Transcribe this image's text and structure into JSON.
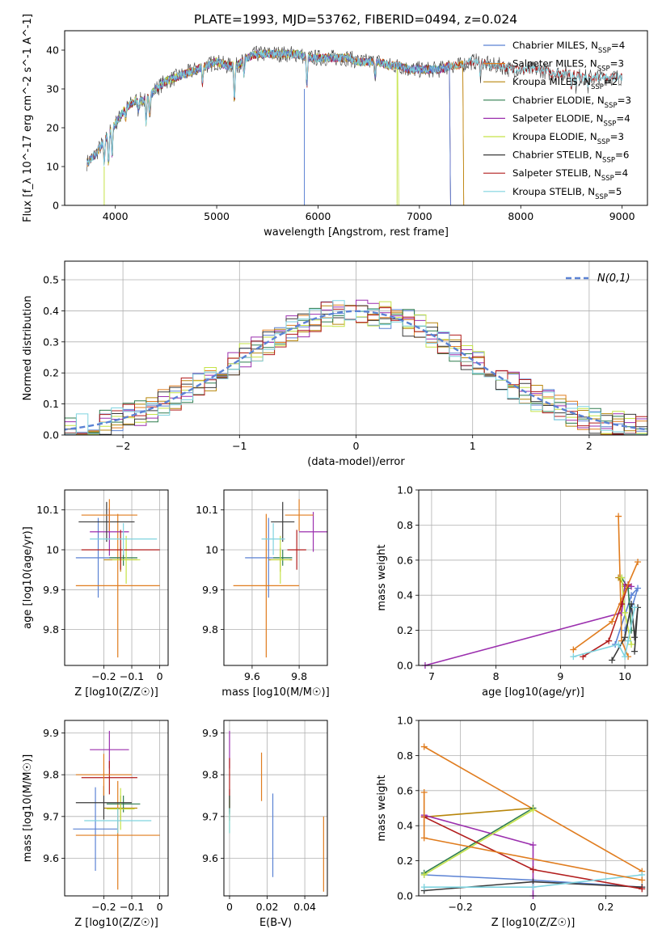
{
  "page": {
    "title": "PLATE=1993, MJD=53762, FIBERID=0494, z=0.024"
  },
  "models": [
    {
      "name": "Chabrier MILES",
      "nssp": "4",
      "color": "#5b82d4"
    },
    {
      "name": "Salpeter MILES",
      "nssp": "3",
      "color": "#e07c1e"
    },
    {
      "name": "Kroupa MILES",
      "nssp": "2",
      "color": "#b8860b"
    },
    {
      "name": "Chabrier ELODIE",
      "nssp": "3",
      "color": "#2f7d4f"
    },
    {
      "name": "Salpeter ELODIE",
      "nssp": "4",
      "color": "#9b2fae"
    },
    {
      "name": "Kroupa ELODIE",
      "nssp": "3",
      "color": "#c5e347"
    },
    {
      "name": "Chabrier STELIB",
      "nssp": "6",
      "color": "#3a3a3a"
    },
    {
      "name": "Salpeter STELIB",
      "nssp": "4",
      "color": "#b21d1d"
    },
    {
      "name": "Kroupa STELIB",
      "nssp": "5",
      "color": "#7fd3df"
    }
  ],
  "chart_data": [
    {
      "id": "spectrum",
      "type": "line",
      "xlabel": "wavelength [Angstrom, rest frame]",
      "ylabel": "Flux [f_λ 10^-17 erg cm^-2 s^-1 A^-1]",
      "xlim": [
        3500,
        9250
      ],
      "ylim": [
        0,
        45
      ],
      "xticks": [
        4000,
        5000,
        6000,
        7000,
        8000,
        9000
      ],
      "yticks": [
        0,
        10,
        20,
        30,
        40
      ],
      "envelope": [
        [
          3720,
          11
        ],
        [
          3800,
          13
        ],
        [
          3900,
          17
        ],
        [
          4000,
          21
        ],
        [
          4100,
          25
        ],
        [
          4200,
          27
        ],
        [
          4300,
          27
        ],
        [
          4400,
          30
        ],
        [
          4500,
          32
        ],
        [
          4600,
          33
        ],
        [
          4700,
          34
        ],
        [
          4800,
          35
        ],
        [
          4900,
          36
        ],
        [
          5000,
          37
        ],
        [
          5100,
          36
        ],
        [
          5200,
          36
        ],
        [
          5300,
          38
        ],
        [
          5400,
          39
        ],
        [
          5500,
          39
        ],
        [
          5600,
          39
        ],
        [
          5700,
          39
        ],
        [
          5800,
          39
        ],
        [
          5900,
          38
        ],
        [
          6000,
          38
        ],
        [
          6100,
          38
        ],
        [
          6200,
          38
        ],
        [
          6300,
          38
        ],
        [
          6400,
          37
        ],
        [
          6500,
          37
        ],
        [
          6600,
          37
        ],
        [
          6700,
          36
        ],
        [
          6800,
          36
        ],
        [
          6900,
          35
        ],
        [
          7000,
          35
        ],
        [
          7100,
          35
        ],
        [
          7200,
          35
        ],
        [
          7300,
          36
        ],
        [
          7400,
          36
        ],
        [
          7500,
          37
        ],
        [
          7600,
          37
        ],
        [
          7700,
          36
        ],
        [
          7800,
          36
        ],
        [
          7900,
          35
        ],
        [
          8000,
          35
        ],
        [
          8100,
          35
        ],
        [
          8200,
          35
        ],
        [
          8300,
          34
        ],
        [
          8400,
          34
        ],
        [
          8500,
          34
        ],
        [
          8600,
          33
        ],
        [
          8700,
          33
        ],
        [
          8800,
          33
        ],
        [
          8900,
          33
        ],
        [
          9000,
          33
        ]
      ],
      "absorption": [
        [
          3830,
          16
        ],
        [
          3890,
          10
        ],
        [
          3933,
          9
        ],
        [
          3968,
          12
        ],
        [
          4102,
          22
        ],
        [
          4227,
          24
        ],
        [
          4304,
          20
        ],
        [
          4340,
          23
        ],
        [
          4861,
          31
        ],
        [
          5175,
          25
        ],
        [
          5270,
          33
        ],
        [
          5890,
          30
        ],
        [
          6563,
          33
        ],
        [
          7600,
          33
        ],
        [
          8498,
          30
        ],
        [
          8542,
          30
        ],
        [
          8662,
          30
        ]
      ],
      "model_cutoffs": [
        {
          "model": "Chabrier MILES",
          "end": 7300
        },
        {
          "model": "Salpeter MILES",
          "end": 7430
        },
        {
          "model": "Kroupa MILES",
          "end": 7430
        },
        {
          "model": "Kroupa ELODIE",
          "end": 6790
        },
        {
          "model": "Chabrier STELIB",
          "end": 9000
        },
        {
          "model": "Salpeter STELIB",
          "end": 9000
        },
        {
          "model": "Kroupa STELIB",
          "end": 9000
        }
      ]
    },
    {
      "id": "residuals",
      "type": "histogram",
      "xlabel": "(data-model)/error",
      "ylabel": "Normed distribution",
      "xlim": [
        -2.5,
        2.5
      ],
      "ylim": [
        0,
        0.56
      ],
      "xticks": [
        -2,
        -1,
        0,
        1,
        2
      ],
      "yticks": [
        0.0,
        0.1,
        0.2,
        0.3,
        0.4,
        0.5
      ],
      "bin_width": 0.1,
      "legend": "N(0,1)",
      "gaussian_color": "#5b82d4"
    },
    {
      "id": "age-vs-z",
      "type": "scatter",
      "xlabel": "Z [log10(Z/Z☉)]",
      "ylabel": "age [log10(age/yr)]",
      "xlim": [
        -0.34,
        0.03
      ],
      "ylim": [
        9.71,
        10.15
      ],
      "xticks": [
        -0.2,
        -0.1,
        0.0
      ],
      "yticks": [
        9.8,
        9.9,
        10.0,
        10.1
      ],
      "points": [
        {
          "model": "Chabrier MILES",
          "x": -0.22,
          "xerr": 0.08,
          "y": 9.98,
          "yerr": 0.1
        },
        {
          "model": "Salpeter MILES",
          "x": -0.15,
          "xerr": 0.15,
          "y": 9.91,
          "yerr": 0.18
        },
        {
          "model": "Kroupa MILES",
          "x": -0.14,
          "xerr": 0.06,
          "y": 9.975,
          "yerr": 0.03
        },
        {
          "model": "Chabrier ELODIE",
          "x": -0.13,
          "xerr": 0.05,
          "y": 9.98,
          "yerr": 0.02
        },
        {
          "model": "Salpeter ELODIE",
          "x": -0.18,
          "xerr": 0.07,
          "y": 10.045,
          "yerr": 0.06
        },
        {
          "model": "Kroupa ELODIE",
          "x": -0.12,
          "xerr": 0.05,
          "y": 9.975,
          "yerr": 0.06
        },
        {
          "model": "Chabrier STELIB",
          "x": -0.19,
          "xerr": 0.1,
          "y": 10.07,
          "yerr": 0.05
        },
        {
          "model": "Salpeter STELIB",
          "x": -0.14,
          "xerr": 0.14,
          "y": 10.0,
          "yerr": 0.05
        },
        {
          "model": "Kroupa STELIB",
          "x": -0.13,
          "xerr": 0.12,
          "y": 10.027,
          "yerr": 0.04
        },
        {
          "model": "Salpeter MILES",
          "x": -0.18,
          "xerr": 0.1,
          "y": 10.087,
          "yerr": 0.04
        }
      ]
    },
    {
      "id": "age-vs-mass",
      "type": "scatter",
      "xlabel": "mass [log10(M/M☉)]",
      "ylabel": "",
      "xlim": [
        9.48,
        9.92
      ],
      "ylim": [
        9.71,
        10.15
      ],
      "xticks": [
        9.6,
        9.8
      ],
      "yticks": [
        9.8,
        9.9,
        10.0,
        10.1
      ],
      "points": [
        {
          "model": "Chabrier MILES",
          "x": 9.67,
          "xerr": 0.1,
          "y": 9.98,
          "yerr": 0.1
        },
        {
          "model": "Salpeter MILES",
          "x": 9.66,
          "xerr": 0.14,
          "y": 9.91,
          "yerr": 0.18
        },
        {
          "model": "Kroupa MILES",
          "x": 9.72,
          "xerr": 0.05,
          "y": 9.975,
          "yerr": 0.03
        },
        {
          "model": "Chabrier ELODIE",
          "x": 9.73,
          "xerr": 0.04,
          "y": 9.98,
          "yerr": 0.02
        },
        {
          "model": "Salpeter ELODIE",
          "x": 9.86,
          "xerr": 0.06,
          "y": 10.045,
          "yerr": 0.05
        },
        {
          "model": "Kroupa ELODIE",
          "x": 9.72,
          "xerr": 0.04,
          "y": 9.975,
          "yerr": 0.06
        },
        {
          "model": "Chabrier STELIB",
          "x": 9.73,
          "xerr": 0.05,
          "y": 10.07,
          "yerr": 0.05
        },
        {
          "model": "Salpeter STELIB",
          "x": 9.79,
          "xerr": 0.04,
          "y": 10.0,
          "yerr": 0.05
        },
        {
          "model": "Kroupa STELIB",
          "x": 9.69,
          "xerr": 0.05,
          "y": 10.027,
          "yerr": 0.04
        },
        {
          "model": "Salpeter MILES",
          "x": 9.8,
          "xerr": 0.06,
          "y": 10.087,
          "yerr": 0.04
        }
      ]
    },
    {
      "id": "weight-vs-age",
      "type": "line",
      "xlabel": "age [log10(age/yr)]",
      "ylabel": "mass weight",
      "xlim": [
        6.8,
        10.35
      ],
      "ylim": [
        0,
        1.0
      ],
      "xticks": [
        7,
        8,
        9,
        10
      ],
      "yticks": [
        0.0,
        0.2,
        0.4,
        0.6,
        0.8,
        1.0
      ],
      "series": [
        {
          "model": "Chabrier MILES",
          "x": [
            9.85,
            10.1,
            10.2,
            10.0
          ],
          "y": [
            0.12,
            0.4,
            0.44,
            0.2
          ]
        },
        {
          "model": "Salpeter MILES",
          "x": [
            9.9,
            9.95,
            10.05
          ],
          "y": [
            0.85,
            0.14,
            0.05
          ]
        },
        {
          "model": "Kroupa MILES",
          "x": [
            9.9,
            10.0
          ],
          "y": [
            0.5,
            0.45
          ]
        },
        {
          "model": "Chabrier ELODIE",
          "x": [
            9.95,
            10.05,
            10.1
          ],
          "y": [
            0.5,
            0.44,
            0.2
          ]
        },
        {
          "model": "Salpeter ELODIE",
          "x": [
            6.9,
            9.95,
            10.0,
            10.1
          ],
          "y": [
            0.0,
            0.3,
            0.46,
            0.45
          ]
        },
        {
          "model": "Kroupa ELODIE",
          "x": [
            9.95,
            10.0,
            10.1
          ],
          "y": [
            0.5,
            0.3,
            0.12
          ]
        },
        {
          "model": "Chabrier STELIB",
          "x": [
            9.8,
            10.0,
            10.1,
            10.15,
            10.2,
            10.15
          ],
          "y": [
            0.03,
            0.16,
            0.35,
            0.16,
            0.33,
            0.08
          ]
        },
        {
          "model": "Salpeter STELIB",
          "x": [
            9.35,
            9.75,
            9.95,
            10.05
          ],
          "y": [
            0.05,
            0.14,
            0.35,
            0.46
          ]
        },
        {
          "model": "Kroupa STELIB",
          "x": [
            9.2,
            9.9,
            10.0,
            10.05,
            10.15
          ],
          "y": [
            0.05,
            0.12,
            0.05,
            0.14,
            0.33
          ]
        },
        {
          "model": "Salpeter MILES",
          "x": [
            9.2,
            9.8,
            10.2
          ],
          "y": [
            0.09,
            0.25,
            0.59
          ]
        }
      ]
    },
    {
      "id": "mass-vs-z",
      "type": "scatter",
      "xlabel": "Z [log10(Z/Z☉)]",
      "ylabel": "mass [log10(M/M☉)]",
      "xlim": [
        -0.34,
        0.03
      ],
      "ylim": [
        9.51,
        9.93
      ],
      "xticks": [
        -0.2,
        -0.1,
        0.0
      ],
      "yticks": [
        9.6,
        9.7,
        9.8,
        9.9
      ],
      "points": [
        {
          "model": "Chabrier MILES",
          "x": -0.23,
          "xerr": 0.08,
          "y": 9.67,
          "yerr": 0.1
        },
        {
          "model": "Salpeter MILES",
          "x": -0.15,
          "xerr": 0.15,
          "y": 9.655,
          "yerr": 0.13
        },
        {
          "model": "Kroupa MILES",
          "x": -0.14,
          "xerr": 0.06,
          "y": 9.72,
          "yerr": 0.03
        },
        {
          "model": "Chabrier ELODIE",
          "x": -0.13,
          "xerr": 0.06,
          "y": 9.73,
          "yerr": 0.02
        },
        {
          "model": "Salpeter ELODIE",
          "x": -0.18,
          "xerr": 0.07,
          "y": 9.86,
          "yerr": 0.045
        },
        {
          "model": "Kroupa ELODIE",
          "x": -0.14,
          "xerr": 0.05,
          "y": 9.718,
          "yerr": 0.05
        },
        {
          "model": "Chabrier STELIB",
          "x": -0.2,
          "xerr": 0.1,
          "y": 9.733,
          "yerr": 0.04
        },
        {
          "model": "Salpeter STELIB",
          "x": -0.18,
          "xerr": 0.1,
          "y": 9.793,
          "yerr": 0.04
        },
        {
          "model": "Kroupa STELIB",
          "x": -0.15,
          "xerr": 0.12,
          "y": 9.69,
          "yerr": 0.03
        },
        {
          "model": "Salpeter MILES",
          "x": -0.2,
          "xerr": 0.1,
          "y": 9.8,
          "yerr": 0.05
        }
      ]
    },
    {
      "id": "mass-vs-ebv",
      "type": "scatter",
      "xlabel": "E(B-V)",
      "ylabel": "",
      "xlim": [
        -0.003,
        0.052
      ],
      "ylim": [
        9.51,
        9.93
      ],
      "xticks": [
        0.0,
        0.02,
        0.04
      ],
      "yticks": [
        9.6,
        9.7,
        9.8,
        9.9
      ],
      "points": [
        {
          "model": "Chabrier MILES",
          "x": 0.023,
          "y": 9.655,
          "yerr": 0.1
        },
        {
          "model": "Salpeter MILES",
          "x": 0.05,
          "y": 9.61,
          "yerr": 0.09
        },
        {
          "model": "Kroupa MILES",
          "x": 0.0,
          "y": 9.72,
          "yerr": 0.03
        },
        {
          "model": "Chabrier ELODIE",
          "x": 0.0,
          "y": 9.73,
          "yerr": 0.02
        },
        {
          "model": "Salpeter ELODIE",
          "x": 0.0,
          "y": 9.86,
          "yerr": 0.045
        },
        {
          "model": "Kroupa ELODIE",
          "x": 0.0,
          "y": 9.7,
          "yerr": 0.04
        },
        {
          "model": "Chabrier STELIB",
          "x": 0.0,
          "y": 9.735,
          "yerr": 0.03
        },
        {
          "model": "Salpeter STELIB",
          "x": 0.0,
          "y": 9.795,
          "yerr": 0.045
        },
        {
          "model": "Kroupa STELIB",
          "x": 0.0,
          "y": 9.69,
          "yerr": 0.03
        },
        {
          "model": "Salpeter MILES",
          "x": 0.017,
          "y": 9.795,
          "yerr": 0.058
        }
      ]
    },
    {
      "id": "weight-vs-z",
      "type": "line",
      "xlabel": "Z [log10(Z/Z☉)]",
      "ylabel": "mass weight",
      "xlim": [
        -0.315,
        0.315
      ],
      "ylim": [
        0,
        1.0
      ],
      "xticks": [
        -0.2,
        0.0,
        0.2
      ],
      "yticks": [
        0.0,
        0.2,
        0.4,
        0.6,
        0.8,
        1.0
      ],
      "series": [
        {
          "model": "Chabrier MILES",
          "x": [
            -0.3,
            0.0,
            0.3
          ],
          "y": [
            0.12,
            0.09,
            0.05
          ]
        },
        {
          "model": "Salpeter MILES",
          "x": [
            -0.3,
            0.3
          ],
          "y": [
            0.85,
            0.14
          ]
        },
        {
          "model": "Kroupa MILES",
          "x": [
            -0.3,
            0.0
          ],
          "y": [
            0.45,
            0.5
          ]
        },
        {
          "model": "Chabrier ELODIE",
          "x": [
            -0.3,
            0.0
          ],
          "y": [
            0.13,
            0.5
          ]
        },
        {
          "model": "Salpeter ELODIE",
          "x": [
            -0.3,
            0.0,
            0.0
          ],
          "y": [
            0.46,
            0.29,
            0.0
          ]
        },
        {
          "model": "Kroupa ELODIE",
          "x": [
            -0.3,
            0.0
          ],
          "y": [
            0.12,
            0.49
          ]
        },
        {
          "model": "Chabrier STELIB",
          "x": [
            -0.3,
            0.0,
            0.3
          ],
          "y": [
            0.03,
            0.08,
            0.05
          ]
        },
        {
          "model": "Salpeter STELIB",
          "x": [
            -0.3,
            0.0,
            0.3
          ],
          "y": [
            0.45,
            0.15,
            0.04
          ]
        },
        {
          "model": "Kroupa STELIB",
          "x": [
            -0.3,
            0.0,
            0.3
          ],
          "y": [
            0.05,
            0.05,
            0.12
          ]
        },
        {
          "model": "Salpeter MILES",
          "x": [
            -0.3,
            -0.3,
            0.3
          ],
          "y": [
            0.59,
            0.33,
            0.09
          ]
        }
      ]
    }
  ]
}
